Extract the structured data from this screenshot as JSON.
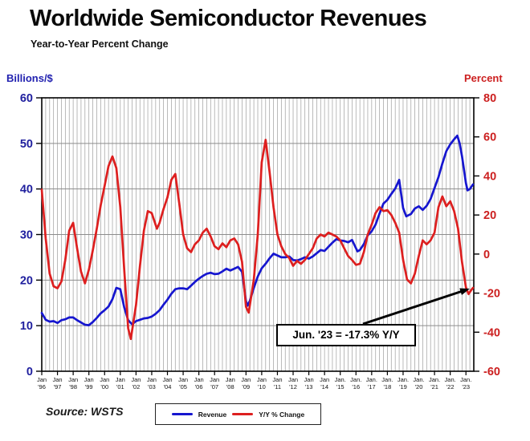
{
  "header": {
    "title": "Worldwide Semiconductor Revenues",
    "subtitle": "Year-to-Year Percent Change"
  },
  "axes": {
    "left_unit": "Billions/$",
    "right_unit": "Percent",
    "left_tick_labels": [
      "60",
      "50",
      "40",
      "30",
      "20",
      "10",
      "0"
    ],
    "right_tick_labels": [
      "80",
      "60",
      "40",
      "20",
      "0",
      "-20",
      "-40",
      "-60"
    ],
    "x_ticks": [
      {
        "line1": "Jan",
        "line2": "'96"
      },
      {
        "line1": "Jan",
        "line2": "'97"
      },
      {
        "line1": "Jan",
        "line2": "'98"
      },
      {
        "line1": "Jan",
        "line2": "'99"
      },
      {
        "line1": "Jan",
        "line2": "'00"
      },
      {
        "line1": "Jan",
        "line2": "'01"
      },
      {
        "line1": "Jan",
        "line2": "'02"
      },
      {
        "line1": "Jan",
        "line2": "'03"
      },
      {
        "line1": "Jan",
        "line2": "'04"
      },
      {
        "line1": "Jan",
        "line2": "'05"
      },
      {
        "line1": "Jan",
        "line2": "'06"
      },
      {
        "line1": "Jan",
        "line2": "'07"
      },
      {
        "line1": "Jan",
        "line2": "'08"
      },
      {
        "line1": "Jan",
        "line2": "'09"
      },
      {
        "line1": "Jan",
        "line2": "'10"
      },
      {
        "line1": "Jan",
        "line2": "'11"
      },
      {
        "line1": "Jan",
        "line2": "'12"
      },
      {
        "line1": "Jan",
        "line2": "'13"
      },
      {
        "line1": "Jan",
        "line2": "'14"
      },
      {
        "line1": "Jan.",
        "line2": "'15"
      },
      {
        "line1": "Jan.",
        "line2": "'16"
      },
      {
        "line1": "Jan.",
        "line2": "'17"
      },
      {
        "line1": "Jan.",
        "line2": "'18"
      },
      {
        "line1": "Jan.",
        "line2": "'19"
      },
      {
        "line1": "Jan.",
        "line2": "'20"
      },
      {
        "line1": "Jan.",
        "line2": "'21"
      },
      {
        "line1": "Jan.",
        "line2": "'22"
      },
      {
        "line1": "Jan.",
        "line2": "'23"
      }
    ]
  },
  "annotation": {
    "label": "Jun. '23 = -17.3% Y/Y"
  },
  "legend": {
    "items": [
      {
        "label": "Revenue",
        "color": "#1616cf"
      },
      {
        "label": "Y/Y % Change",
        "color": "#dd1f1f"
      }
    ]
  },
  "source": {
    "text": "Source: WSTS"
  },
  "colors": {
    "revenue_line": "#1616cf",
    "yoy_line": "#dd1f1f",
    "left_axis_text": "#1f1f9e",
    "right_axis_text": "#cc2020",
    "grid_vertical": "#a3a3a3",
    "grid_horizontal": "#8c8c8c",
    "frame": "#000000"
  },
  "chart_data": {
    "type": "line",
    "title": "Worldwide Semiconductor Revenues",
    "subtitle": "Year-to-Year Percent Change",
    "x_range": [
      1996,
      2023.5
    ],
    "left_ylim": [
      0,
      60
    ],
    "right_ylim": [
      -60,
      80
    ],
    "left_tick_step": 10,
    "right_tick_step": 20,
    "grid": "vertical-quarterly + horizontal-left-ticks",
    "legend_position": "bottom-center",
    "annotation_text": "Jun. '23 = -17.3% Y/Y",
    "series": [
      {
        "name": "Revenue",
        "axis": "left",
        "units": "US$ billions per month",
        "color": "#1616cf",
        "x": [
          1996.0,
          1996.25,
          1996.5,
          1996.75,
          1997.0,
          1997.25,
          1997.5,
          1997.75,
          1998.0,
          1998.25,
          1998.5,
          1998.75,
          1999.0,
          1999.25,
          1999.5,
          1999.75,
          2000.0,
          2000.25,
          2000.5,
          2000.75,
          2001.0,
          2001.25,
          2001.5,
          2001.75,
          2002.0,
          2002.25,
          2002.5,
          2002.75,
          2003.0,
          2003.25,
          2003.5,
          2003.75,
          2004.0,
          2004.25,
          2004.5,
          2004.75,
          2005.0,
          2005.25,
          2005.5,
          2005.75,
          2006.0,
          2006.25,
          2006.5,
          2006.75,
          2007.0,
          2007.25,
          2007.5,
          2007.75,
          2008.0,
          2008.25,
          2008.5,
          2008.75,
          2009.0,
          2009.1,
          2009.25,
          2009.5,
          2009.75,
          2010.0,
          2010.25,
          2010.5,
          2010.75,
          2011.0,
          2011.25,
          2011.5,
          2011.75,
          2012.0,
          2012.25,
          2012.5,
          2012.75,
          2013.0,
          2013.25,
          2013.5,
          2013.75,
          2014.0,
          2014.25,
          2014.5,
          2014.75,
          2015.0,
          2015.25,
          2015.5,
          2015.75,
          2016.0,
          2016.1,
          2016.25,
          2016.5,
          2016.75,
          2017.0,
          2017.25,
          2017.5,
          2017.75,
          2018.0,
          2018.25,
          2018.5,
          2018.75,
          2019.0,
          2019.2,
          2019.5,
          2019.75,
          2020.0,
          2020.25,
          2020.5,
          2020.75,
          2021.0,
          2021.25,
          2021.5,
          2021.75,
          2022.0,
          2022.25,
          2022.45,
          2022.6,
          2022.75,
          2023.0,
          2023.1,
          2023.25,
          2023.45
        ],
        "values": [
          12.8,
          11.3,
          10.9,
          11.0,
          10.6,
          11.2,
          11.4,
          11.8,
          11.8,
          11.2,
          10.7,
          10.2,
          10.1,
          10.8,
          11.7,
          12.7,
          13.4,
          14.2,
          15.8,
          18.3,
          18.0,
          14.0,
          11.2,
          10.3,
          11.0,
          11.3,
          11.6,
          11.7,
          12.0,
          12.6,
          13.4,
          14.6,
          15.7,
          17.0,
          18.0,
          18.2,
          18.2,
          18.0,
          18.8,
          19.6,
          20.3,
          20.9,
          21.4,
          21.6,
          21.3,
          21.4,
          21.9,
          22.5,
          22.1,
          22.5,
          22.9,
          21.8,
          15.4,
          14.4,
          15.5,
          18.3,
          20.8,
          22.6,
          23.6,
          24.8,
          25.8,
          25.4,
          25.0,
          25.0,
          25.2,
          24.4,
          24.3,
          24.6,
          25.0,
          24.7,
          25.2,
          25.9,
          26.6,
          26.4,
          27.3,
          28.2,
          29.0,
          28.7,
          28.6,
          28.3,
          28.8,
          27.0,
          26.3,
          26.6,
          27.9,
          29.8,
          30.7,
          32.2,
          34.6,
          36.8,
          37.6,
          38.9,
          40.1,
          42.0,
          35.8,
          34.0,
          34.5,
          35.7,
          36.2,
          35.4,
          36.3,
          37.8,
          40.2,
          42.6,
          45.6,
          48.3,
          49.8,
          50.9,
          51.7,
          50.0,
          47.2,
          41.3,
          39.7,
          40.0,
          41.0
        ]
      },
      {
        "name": "Y/Y % Change",
        "axis": "right",
        "units": "percent",
        "color": "#dd1f1f",
        "x": [
          1996.0,
          1996.25,
          1996.5,
          1996.75,
          1997.0,
          1997.25,
          1997.5,
          1997.75,
          1998.0,
          1998.25,
          1998.5,
          1998.75,
          1999.0,
          1999.25,
          1999.5,
          1999.75,
          2000.0,
          2000.25,
          2000.5,
          2000.75,
          2001.0,
          2001.25,
          2001.5,
          2001.67,
          2002.0,
          2002.25,
          2002.5,
          2002.75,
          2003.0,
          2003.33,
          2003.5,
          2003.75,
          2004.0,
          2004.25,
          2004.5,
          2004.75,
          2005.0,
          2005.25,
          2005.5,
          2005.75,
          2006.0,
          2006.25,
          2006.5,
          2006.75,
          2007.0,
          2007.25,
          2007.5,
          2007.75,
          2008.0,
          2008.25,
          2008.5,
          2008.75,
          2009.0,
          2009.17,
          2009.5,
          2009.75,
          2010.0,
          2010.25,
          2010.5,
          2010.75,
          2011.0,
          2011.25,
          2011.5,
          2011.75,
          2012.0,
          2012.25,
          2012.5,
          2012.75,
          2013.0,
          2013.25,
          2013.5,
          2013.75,
          2014.0,
          2014.25,
          2014.5,
          2014.75,
          2015.0,
          2015.25,
          2015.5,
          2015.75,
          2016.0,
          2016.25,
          2016.5,
          2016.75,
          2017.0,
          2017.25,
          2017.5,
          2017.75,
          2018.0,
          2018.25,
          2018.5,
          2018.75,
          2019.0,
          2019.25,
          2019.5,
          2019.75,
          2020.0,
          2020.25,
          2020.5,
          2020.75,
          2021.0,
          2021.25,
          2021.5,
          2021.75,
          2022.0,
          2022.25,
          2022.5,
          2022.75,
          2023.0,
          2023.17,
          2023.33,
          2023.45
        ],
        "values": [
          33,
          8,
          -10,
          -16.5,
          -17.5,
          -14,
          -3,
          12,
          16,
          3,
          -9,
          -15,
          -8,
          2,
          13,
          25,
          35,
          45,
          50,
          44,
          24,
          -8,
          -38,
          -43.5,
          -26,
          -6,
          12,
          22,
          21,
          13,
          16,
          23,
          29,
          38,
          41,
          26,
          10,
          3,
          1,
          5,
          7,
          11,
          13,
          9,
          4,
          2.5,
          5.5,
          3.5,
          7,
          8,
          5,
          -4,
          -27,
          -30,
          -13,
          10,
          47,
          58.5,
          42,
          24,
          10,
          4,
          0,
          -2,
          -6,
          -3.5,
          -5,
          -3,
          0,
          3,
          8,
          10,
          9,
          11,
          10,
          9,
          7,
          3,
          -1,
          -3,
          -5.5,
          -5,
          1,
          10,
          15,
          21,
          24,
          22,
          22.5,
          20,
          16,
          11,
          -3,
          -13,
          -15,
          -10,
          -1,
          7,
          5,
          7,
          11,
          24,
          29.5,
          24.5,
          27,
          22,
          13,
          -4,
          -17,
          -20.5,
          -18.5,
          -17.3
        ]
      }
    ]
  }
}
